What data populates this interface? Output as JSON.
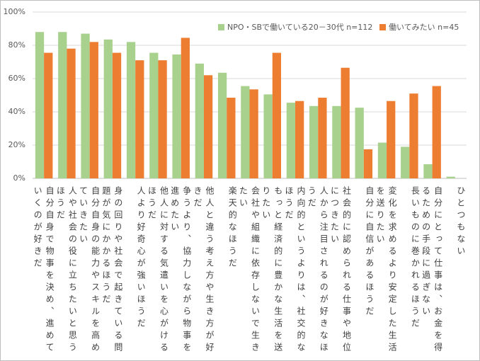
{
  "chart_data": {
    "type": "bar",
    "categories": [
      "自分自身で物事を決め、進めていくのが好きだ",
      "人や社会の役に立ちたいと思うほうだ",
      "自分自身の能力やスキルを高めていきたい",
      "身の回りや社会で起きている問題が気にかかるほうだ",
      "人より好奇心が強いほうだ",
      "他人に対する気遣いを心がけるほうだ",
      "争うより、協力しながら物事を進めたい",
      "他人と違う考え方や生き方が好きだ",
      "楽天的なほうだ",
      "会社や組織に依存しないで生きたい",
      "もっと経済的に豊かな生活を送りたい",
      "内向的というよりは、社交的なほうだ",
      "人から注目されるのが好きなほうだ",
      "社会的に認められる仕事や地位につきたい",
      "自分に自信があるほうだ",
      "変化を求めるより安定した生活を送りたい",
      "長いものに巻かれるほうだ",
      "自分にとって仕事は、お金を得るための手段に過ぎない",
      "ひとつもない"
    ],
    "series": [
      {
        "name": "NPO・SBで働いている20－30代 n=112",
        "color": "#a9d18e",
        "values": [
          88,
          88,
          87,
          83.5,
          82,
          75.5,
          74.5,
          69,
          63.5,
          55.5,
          50.5,
          45.5,
          43.5,
          43.5,
          42.5,
          21.5,
          19,
          8.5,
          1
        ]
      },
      {
        "name": "働いてみたい n=45",
        "color": "#ed7d31",
        "values": [
          75.5,
          78,
          82,
          75.5,
          71,
          71,
          84.5,
          62,
          48.5,
          53.5,
          75.5,
          46.5,
          48.5,
          66.5,
          17.5,
          46.5,
          51,
          55.5,
          0
        ]
      }
    ],
    "ylim": [
      0,
      100
    ],
    "yticks": [
      {
        "value": 0,
        "label": "0%"
      },
      {
        "value": 20,
        "label": "20%"
      },
      {
        "value": 40,
        "label": "40%"
      },
      {
        "value": 60,
        "label": "60%"
      },
      {
        "value": 80,
        "label": "80%"
      },
      {
        "value": 100,
        "label": "100%"
      }
    ],
    "grid": true,
    "legend": "top-right"
  }
}
